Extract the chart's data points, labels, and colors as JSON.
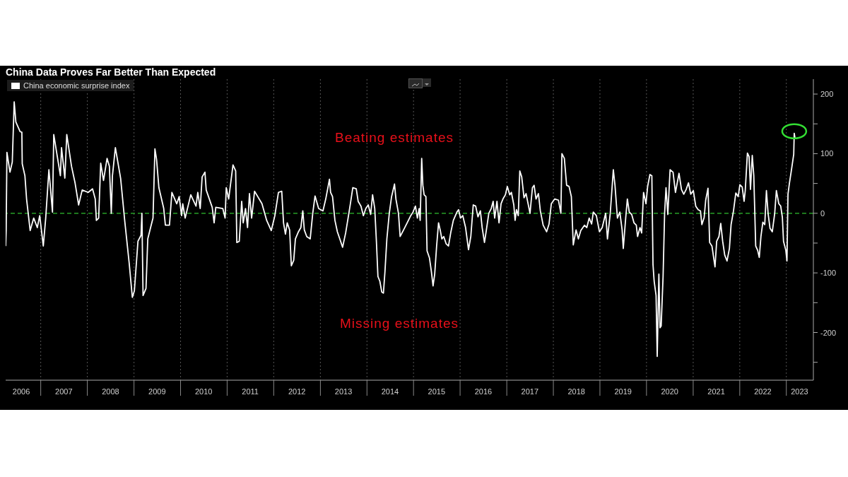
{
  "chart_data": {
    "type": "line",
    "title": "China Data Proves Far Better Than Expected",
    "x": [
      "2006-04-01",
      "2006-04-05",
      "2006-04-11",
      "2006-05-05",
      "2006-05-23",
      "2006-06-07",
      "2006-06-20",
      "2006-07-23",
      "2006-08-06",
      "2006-08-09",
      "2006-08-30",
      "2006-09-12",
      "2006-10-10",
      "2006-11-07",
      "2006-12-05",
      "2006-12-24",
      "2007-01-21",
      "2007-02-09",
      "2007-03-06",
      "2007-04-03",
      "2007-04-13",
      "2007-06-04",
      "2007-06-13",
      "2007-07-09",
      "2007-07-24",
      "2007-08-30",
      "2007-09-27",
      "2007-10-25",
      "2007-11-22",
      "2008-01-08",
      "2008-02-11",
      "2008-03-03",
      "2008-03-12",
      "2008-03-30",
      "2008-04-15",
      "2008-05-07",
      "2008-06-04",
      "2008-06-22",
      "2008-07-07",
      "2008-07-16",
      "2008-08-08",
      "2008-09-18",
      "2008-10-21",
      "2008-11-24",
      "2008-12-19",
      "2009-01-04",
      "2009-02-01",
      "2009-02-25",
      "2009-03-04",
      "2009-03-13",
      "2009-04-05",
      "2009-04-19",
      "2009-05-11",
      "2009-05-30",
      "2009-06-14",
      "2009-06-27",
      "2009-07-15",
      "2009-08-22",
      "2009-09-04",
      "2009-10-06",
      "2009-10-25",
      "2009-12-02",
      "2009-12-21",
      "2010-01-09",
      "2010-01-18",
      "2010-02-06",
      "2010-03-22",
      "2010-05-02",
      "2010-05-16",
      "2010-06-04",
      "2010-06-19",
      "2010-07-11",
      "2010-07-21",
      "2010-09-06",
      "2010-09-21",
      "2010-10-04",
      "2010-11-28",
      "2010-12-16",
      "2010-12-25",
      "2011-01-13",
      "2011-02-16",
      "2011-03-09",
      "2011-03-18",
      "2011-04-06",
      "2011-04-25",
      "2011-05-07",
      "2011-05-25",
      "2011-06-10",
      "2011-06-25",
      "2011-07-12",
      "2011-08-04",
      "2011-10-01",
      "2011-11-07",
      "2011-12-13",
      "2012-01-10",
      "2012-02-07",
      "2012-03-04",
      "2012-03-18",
      "2012-04-02",
      "2012-04-16",
      "2012-05-05",
      "2012-05-18",
      "2012-06-06",
      "2012-06-19",
      "2012-07-13",
      "2012-08-01",
      "2012-08-16",
      "2012-08-28",
      "2012-09-16",
      "2012-10-13",
      "2012-11-02",
      "2012-11-20",
      "2012-12-18",
      "2013-01-21",
      "2013-02-12",
      "2013-03-13",
      "2013-03-22",
      "2013-04-06",
      "2013-04-25",
      "2013-05-14",
      "2013-06-02",
      "2013-06-24",
      "2013-07-18",
      "2013-08-06",
      "2013-08-24",
      "2013-09-12",
      "2013-10-09",
      "2013-10-24",
      "2013-11-15",
      "2013-12-04",
      "2013-12-23",
      "2014-01-11",
      "2014-01-30",
      "2014-02-14",
      "2014-03-03",
      "2014-03-16",
      "2014-03-28",
      "2014-04-12",
      "2014-04-27",
      "2014-05-10",
      "2014-05-22",
      "2014-06-06",
      "2014-06-25",
      "2014-07-13",
      "2014-08-05",
      "2014-08-16",
      "2014-09-05",
      "2014-09-18",
      "2014-10-15",
      "2014-11-12",
      "2014-12-10",
      "2014-12-28",
      "2015-01-16",
      "2015-01-31",
      "2015-02-14",
      "2015-02-22",
      "2015-03-06",
      "2015-03-15",
      "2015-03-25",
      "2015-04-08",
      "2015-04-17",
      "2015-05-06",
      "2015-05-21",
      "2015-06-03",
      "2015-06-16",
      "2015-07-01",
      "2015-07-16",
      "2015-07-29",
      "2015-08-11",
      "2015-08-26",
      "2015-09-13",
      "2015-10-02",
      "2015-10-21",
      "2015-11-09",
      "2015-12-07",
      "2015-12-20",
      "2016-01-04",
      "2016-01-22",
      "2016-02-13",
      "2016-03-07",
      "2016-03-25",
      "2016-04-13",
      "2016-05-02",
      "2016-05-20",
      "2016-06-08",
      "2016-06-22",
      "2016-07-10",
      "2016-07-25",
      "2016-08-13",
      "2016-09-01",
      "2016-09-16",
      "2016-09-28",
      "2016-10-16",
      "2016-11-01",
      "2016-11-17",
      "2016-12-02",
      "2016-12-21",
      "2017-01-05",
      "2017-01-24",
      "2017-02-06",
      "2017-02-25",
      "2017-03-07",
      "2017-03-18",
      "2017-04-01",
      "2017-04-13",
      "2017-04-28",
      "2017-05-16",
      "2017-06-01",
      "2017-06-13",
      "2017-07-02",
      "2017-07-21",
      "2017-08-03",
      "2017-08-18",
      "2017-09-06",
      "2017-09-21",
      "2017-10-13",
      "2017-11-09",
      "2017-11-28",
      "2017-12-16",
      "2018-01-12",
      "2018-02-10",
      "2018-03-01",
      "2018-03-09",
      "2018-03-28",
      "2018-04-15",
      "2018-05-04",
      "2018-05-22",
      "2018-06-06",
      "2018-06-28",
      "2018-07-16",
      "2018-08-04",
      "2018-09-02",
      "2018-09-20",
      "2018-10-09",
      "2018-10-28",
      "2018-11-10",
      "2018-12-04",
      "2018-12-28",
      "2019-01-19",
      "2019-02-15",
      "2019-03-01",
      "2019-03-23",
      "2019-04-16",
      "2019-04-29",
      "2019-05-18",
      "2019-06-06",
      "2019-06-24",
      "2019-07-03",
      "2019-07-22",
      "2019-08-04",
      "2019-08-19",
      "2019-09-07",
      "2019-09-25",
      "2019-10-13",
      "2019-10-23",
      "2019-11-11",
      "2019-11-24",
      "2019-12-09",
      "2019-12-28",
      "2020-01-10",
      "2020-01-28",
      "2020-02-12",
      "2020-02-21",
      "2020-03-01",
      "2020-03-16",
      "2020-03-25",
      "2020-04-07",
      "2020-04-16",
      "2020-04-25",
      "2020-05-10",
      "2020-05-22",
      "2020-06-02",
      "2020-06-16",
      "2020-07-04",
      "2020-07-27",
      "2020-08-15",
      "2020-09-12",
      "2020-10-01",
      "2020-10-19",
      "2020-11-07",
      "2020-11-25",
      "2020-12-13",
      "2021-01-02",
      "2021-01-21",
      "2021-02-09",
      "2021-02-27",
      "2021-03-10",
      "2021-03-28",
      "2021-04-09",
      "2021-04-27",
      "2021-05-10",
      "2021-05-28",
      "2021-06-10",
      "2021-06-21",
      "2021-07-04",
      "2021-07-22",
      "2021-08-05",
      "2021-08-20",
      "2021-09-05",
      "2021-09-23",
      "2021-10-12",
      "2021-10-25",
      "2021-11-13",
      "2021-12-01",
      "2021-12-20",
      "2022-01-02",
      "2022-01-20",
      "2022-02-04",
      "2022-02-13",
      "2022-03-02",
      "2022-03-15",
      "2022-03-26",
      "2022-04-09",
      "2022-04-21",
      "2022-05-06",
      "2022-05-21",
      "2022-06-03",
      "2022-06-16",
      "2022-07-01",
      "2022-07-16",
      "2022-07-29",
      "2022-08-11",
      "2022-08-26",
      "2022-09-13",
      "2022-10-02",
      "2022-10-15",
      "2022-11-03",
      "2022-11-18",
      "2022-12-01",
      "2022-12-10",
      "2022-12-28",
      "2023-01-06",
      "2023-01-14",
      "2023-01-25",
      "2023-02-09",
      "2023-02-28",
      "2023-03-04",
      "2023-03-10"
    ],
    "series": [
      {
        "name": "China economic surprise index",
        "color": "#ffffff",
        "values": [
          -55,
          -29,
          102,
          69,
          86,
          187,
          153,
          137,
          136,
          83,
          63,
          24,
          -29,
          -8,
          -24,
          -4,
          -55,
          -8,
          73,
          2,
          132,
          63,
          110,
          59,
          132,
          79,
          51,
          14,
          39,
          35,
          41,
          24,
          -12,
          -8,
          84,
          55,
          92,
          79,
          0,
          63,
          110,
          59,
          -14,
          -83,
          -141,
          -130,
          -47,
          -37,
          0,
          -138,
          -126,
          -43,
          -24,
          -8,
          108,
          90,
          43,
          8,
          -20,
          -20,
          35,
          16,
          28,
          -4,
          16,
          -8,
          31,
          12,
          35,
          8,
          61,
          69,
          39,
          10,
          -16,
          10,
          8,
          -8,
          43,
          24,
          81,
          71,
          -49,
          -47,
          20,
          -16,
          8,
          -24,
          33,
          -8,
          37,
          16,
          -12,
          -29,
          -4,
          35,
          37,
          -16,
          -35,
          -16,
          -28,
          -88,
          -79,
          -43,
          -31,
          -24,
          4,
          -28,
          -39,
          -43,
          0,
          29,
          8,
          4,
          24,
          57,
          35,
          28,
          -12,
          -31,
          -43,
          -57,
          -33,
          -8,
          16,
          43,
          41,
          20,
          12,
          -4,
          8,
          14,
          -2,
          31,
          8,
          -47,
          -106,
          -114,
          -132,
          -134,
          -98,
          -43,
          0,
          28,
          49,
          24,
          0,
          -39,
          -28,
          -16,
          -4,
          2,
          12,
          -8,
          8,
          -12,
          92,
          47,
          31,
          28,
          -63,
          -75,
          -98,
          -122,
          -102,
          -55,
          -16,
          -28,
          -43,
          -39,
          -51,
          -55,
          -31,
          -12,
          2,
          6,
          -8,
          -4,
          -24,
          -61,
          -39,
          14,
          12,
          -6,
          4,
          -24,
          -49,
          -28,
          0,
          8,
          20,
          -8,
          20,
          -16,
          16,
          24,
          31,
          45,
          31,
          35,
          14,
          -12,
          6,
          -4,
          71,
          61,
          26,
          33,
          20,
          0,
          43,
          47,
          24,
          33,
          4,
          -20,
          -31,
          -18,
          16,
          24,
          22,
          0,
          100,
          92,
          47,
          45,
          28,
          -53,
          -28,
          -43,
          -29,
          -20,
          -24,
          -8,
          -18,
          2,
          -4,
          -31,
          -24,
          0,
          -43,
          0,
          73,
          47,
          -8,
          2,
          -28,
          -59,
          -8,
          24,
          2,
          -2,
          -16,
          -20,
          -39,
          -24,
          -33,
          35,
          16,
          45,
          65,
          63,
          -86,
          -114,
          -138,
          -240,
          -102,
          -192,
          -189,
          -106,
          0,
          43,
          -2,
          73,
          69,
          35,
          67,
          40,
          32,
          40,
          51,
          32,
          38,
          12,
          6,
          4,
          -19,
          -7,
          22,
          42,
          -49,
          -55,
          -74,
          -90,
          -47,
          -39,
          -17,
          -47,
          -70,
          -80,
          -59,
          -19,
          4,
          34,
          28,
          48,
          44,
          20,
          38,
          101,
          95,
          40,
          97,
          63,
          -55,
          -62,
          -74,
          -39,
          -15,
          -19,
          38,
          0,
          -25,
          -31,
          0,
          38,
          16,
          12,
          -7,
          -47,
          -62,
          -80,
          32,
          50,
          71,
          99,
          134,
          126
        ]
      }
    ],
    "xlim": [
      "2006-04",
      "2023-08"
    ],
    "xticks": [
      {
        "value": "2006-08-01",
        "label": "2006"
      },
      {
        "value": "2007-01-01",
        "label": null
      },
      {
        "value": "2007-07-01",
        "label": "2007"
      },
      {
        "value": "2008-01-01",
        "label": null
      },
      {
        "value": "2008-07-01",
        "label": "2008"
      },
      {
        "value": "2009-01-01",
        "label": null
      },
      {
        "value": "2009-07-01",
        "label": "2009"
      },
      {
        "value": "2010-01-01",
        "label": null
      },
      {
        "value": "2010-07-01",
        "label": "2010"
      },
      {
        "value": "2011-01-01",
        "label": null
      },
      {
        "value": "2011-07-01",
        "label": "2011"
      },
      {
        "value": "2012-01-01",
        "label": null
      },
      {
        "value": "2012-07-01",
        "label": "2012"
      },
      {
        "value": "2013-01-01",
        "label": null
      },
      {
        "value": "2013-07-01",
        "label": "2013"
      },
      {
        "value": "2014-01-01",
        "label": null
      },
      {
        "value": "2014-07-01",
        "label": "2014"
      },
      {
        "value": "2015-01-01",
        "label": null
      },
      {
        "value": "2015-07-01",
        "label": "2015"
      },
      {
        "value": "2016-01-01",
        "label": null
      },
      {
        "value": "2016-07-01",
        "label": "2016"
      },
      {
        "value": "2017-01-01",
        "label": null
      },
      {
        "value": "2017-07-01",
        "label": "2017"
      },
      {
        "value": "2018-01-01",
        "label": null
      },
      {
        "value": "2018-07-01",
        "label": "2018"
      },
      {
        "value": "2019-01-01",
        "label": null
      },
      {
        "value": "2019-07-01",
        "label": "2019"
      },
      {
        "value": "2020-01-01",
        "label": null
      },
      {
        "value": "2020-07-01",
        "label": "2020"
      },
      {
        "value": "2021-01-01",
        "label": null
      },
      {
        "value": "2021-07-01",
        "label": "2021"
      },
      {
        "value": "2022-01-01",
        "label": null
      },
      {
        "value": "2022-07-01",
        "label": "2022"
      },
      {
        "value": "2023-01-01",
        "label": null
      },
      {
        "value": "2023-04-15",
        "label": "2023"
      }
    ],
    "ylim": [
      -280,
      225
    ],
    "yticks": [
      {
        "value": -250,
        "label": null
      },
      -200,
      {
        "value": -150,
        "label": null
      },
      -100,
      {
        "value": -50,
        "label": null
      },
      0,
      {
        "value": 50,
        "label": null
      },
      100,
      {
        "value": 150,
        "label": null
      },
      200
    ],
    "ref_lines": [
      {
        "axis": "y",
        "value": 0,
        "label": null,
        "color": "#2fbf2f",
        "line_style": "dashed"
      }
    ],
    "annotations": [
      "Beating estimates",
      "Missing estimates"
    ],
    "grid": true,
    "legend": "top left",
    "marker": "none",
    "line_style": "solid"
  }
}
